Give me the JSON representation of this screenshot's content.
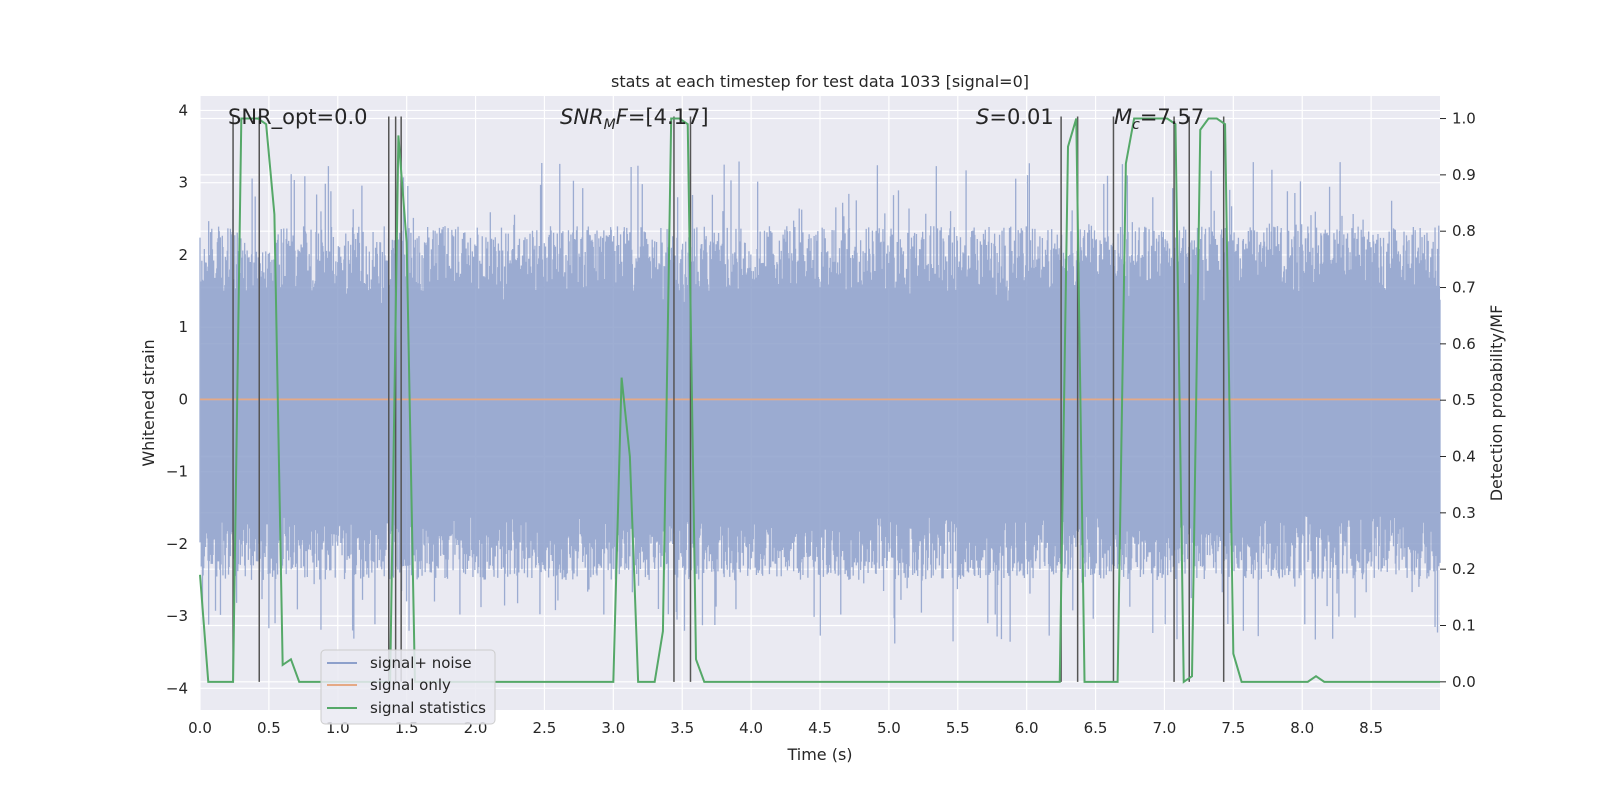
{
  "chart_data": {
    "type": "line",
    "title": "stats at each timestep for test data 1033 [signal=0]",
    "xlabel": "Time (s)",
    "ylabel": "Whitened strain",
    "y2label": "Detection probability/MF",
    "xlim": [
      0.0,
      9.0
    ],
    "ylim": [
      -4.3,
      4.2
    ],
    "y2lim": [
      -0.05,
      1.04
    ],
    "x_ticks": [
      "0.0",
      "0.5",
      "1.0",
      "1.5",
      "2.0",
      "2.5",
      "3.0",
      "3.5",
      "4.0",
      "4.5",
      "5.0",
      "5.5",
      "6.0",
      "6.5",
      "7.0",
      "7.5",
      "8.0",
      "8.5"
    ],
    "y_ticks": [
      "−4",
      "−3",
      "−2",
      "−1",
      "0",
      "1",
      "2",
      "3",
      "4"
    ],
    "y2_ticks": [
      "0.0",
      "0.1",
      "0.2",
      "0.3",
      "0.4",
      "0.5",
      "0.6",
      "0.7",
      "0.8",
      "0.9",
      "1.0"
    ],
    "noise": {
      "samples": 2000,
      "band": [
        -1.6,
        1.5
      ],
      "peak_up": 3.3,
      "peak_down": -3.4
    },
    "series": [
      {
        "name": "signal+ noise",
        "color": "#8da0cb",
        "values": "noise band, approx. -1.6..1.5 with spikes to ±3.3"
      },
      {
        "name": "signal only",
        "color": "#e5a985",
        "x": [
          0,
          9
        ],
        "values": [
          0,
          0
        ]
      },
      {
        "name": "signal statistics",
        "color": "#55a868",
        "x": [
          0.0,
          0.06,
          0.12,
          0.18,
          0.24,
          0.3,
          0.36,
          0.42,
          0.48,
          0.54,
          0.6,
          0.66,
          0.72,
          0.78,
          0.84,
          0.9,
          0.96,
          1.02,
          1.08,
          1.14,
          1.2,
          1.26,
          1.32,
          1.38,
          1.44,
          1.5,
          1.56,
          1.62,
          1.68,
          1.74,
          2.94,
          3.0,
          3.06,
          3.12,
          3.18,
          3.24,
          3.3,
          3.36,
          3.42,
          3.48,
          3.54,
          3.6,
          3.66,
          3.72,
          3.78,
          5.64,
          5.7,
          5.76,
          6.24,
          6.3,
          6.36,
          6.42,
          6.48,
          6.54,
          6.6,
          6.66,
          6.72,
          6.78,
          6.84,
          6.9,
          6.96,
          7.02,
          7.08,
          7.14,
          7.2,
          7.26,
          7.32,
          7.38,
          7.44,
          7.5,
          7.56,
          7.62,
          7.68,
          7.98,
          8.04,
          8.1,
          8.16,
          8.22,
          9.0
        ],
        "values": [
          0.19,
          0.0,
          0.0,
          0.0,
          0.0,
          1.0,
          1.0,
          1.0,
          0.99,
          0.83,
          0.03,
          0.04,
          0.0,
          0.0,
          0.0,
          0.0,
          0.0,
          0.0,
          0.0,
          0.0,
          0.0,
          0.0,
          0.0,
          0.0,
          0.97,
          0.78,
          0.0,
          0.0,
          0.0,
          0.0,
          0.0,
          0.0,
          0.54,
          0.4,
          0.0,
          0.0,
          0.0,
          0.09,
          1.0,
          1.0,
          0.99,
          0.04,
          0.0,
          0.0,
          0.0,
          0.0,
          0.0,
          0.0,
          0.0,
          0.95,
          1.0,
          0.0,
          0.0,
          0.0,
          0.0,
          0.0,
          0.92,
          1.0,
          1.0,
          1.0,
          1.0,
          1.0,
          0.99,
          0.0,
          0.01,
          0.98,
          1.0,
          1.0,
          0.99,
          0.05,
          0.0,
          0.0,
          0.0,
          0.0,
          0.0,
          0.01,
          0.0,
          0.0,
          0.0
        ]
      }
    ],
    "trigger_lines": [
      0.24,
      0.43,
      1.37,
      1.42,
      1.46,
      3.44,
      3.56,
      6.25,
      6.37,
      6.63,
      7.07,
      7.18,
      7.43
    ],
    "annotations": [
      {
        "text": "SNR_opt=0.0"
      },
      {
        "text": "SNR_MF=[4.17]",
        "math_base": "SNR",
        "math_sub": "M",
        "math_rest": "F",
        "math_value": "=[4.17]"
      },
      {
        "text": "S=0.01",
        "math_base": "S",
        "math_value": "=0.01"
      },
      {
        "text": "M_c=7.57",
        "math_base": "M",
        "math_sub": "c",
        "math_value": "=7.57"
      }
    ],
    "legend": {
      "location": "lower-left",
      "entries": [
        "signal+ noise",
        "signal only",
        "signal statistics"
      ]
    },
    "grid": true,
    "background": "#eaeaf2"
  }
}
